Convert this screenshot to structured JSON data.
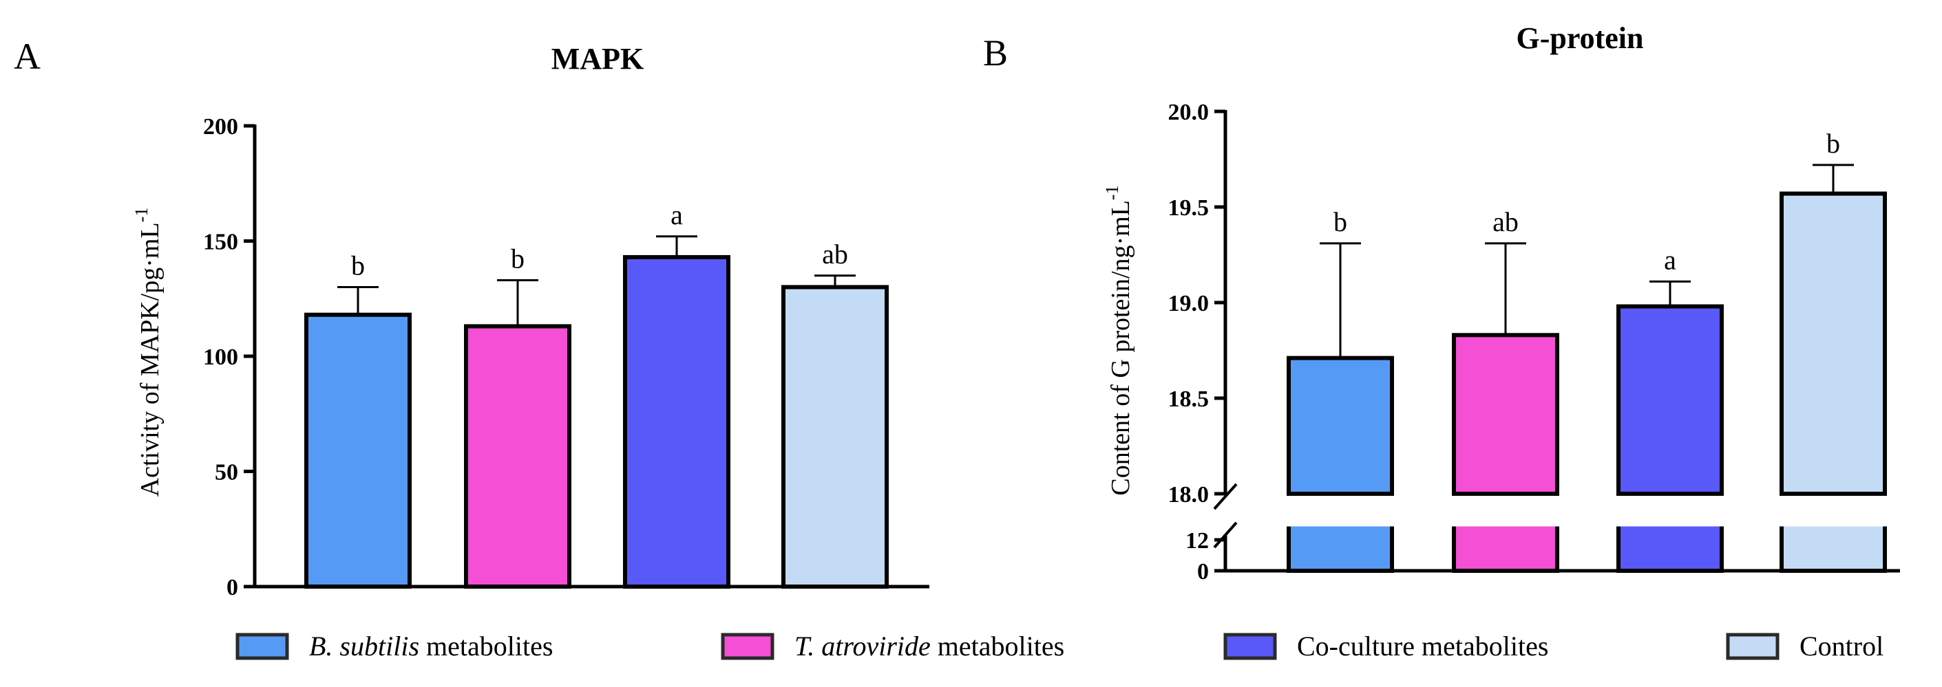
{
  "chart_data": [
    {
      "type": "bar",
      "panel_label": "A",
      "title": "MAPK",
      "ylabel_main": "Activity of MAPK/pg·mL",
      "ylabel_sup": "-1",
      "ylim": [
        0,
        200
      ],
      "yticks": [
        0,
        50,
        100,
        150,
        200
      ],
      "categories": [
        "B. subtilis metabolites",
        "T. atroviride metabolites",
        "Co-culture metabolites",
        "Control"
      ],
      "values": [
        118,
        113,
        143,
        130
      ],
      "errors": [
        12,
        20,
        9,
        5
      ],
      "significance": [
        "b",
        "b",
        "a",
        "ab"
      ],
      "colors": [
        "#559bf5",
        "#f44fd5",
        "#5959f9",
        "#c4dbf6"
      ]
    },
    {
      "type": "bar",
      "panel_label": "B",
      "title": "G-protein",
      "ylabel_main": "Content of G protein/ng·mL",
      "ylabel_sup": "-1",
      "broken_axis": true,
      "ylim_lower": [
        0,
        12
      ],
      "ylim_upper": [
        18.0,
        20.0
      ],
      "yticks_lower": [
        0,
        12
      ],
      "yticks_upper": [
        "18.0",
        "18.5",
        "19.0",
        "19.5",
        "20.0"
      ],
      "categories": [
        "B. subtilis metabolites",
        "T. atroviride metabolites",
        "Co-culture metabolites",
        "Control"
      ],
      "values": [
        18.71,
        18.83,
        18.98,
        19.57
      ],
      "errors": [
        0.6,
        0.48,
        0.13,
        0.15
      ],
      "significance": [
        "b",
        "ab",
        "a",
        "b"
      ],
      "colors": [
        "#559bf5",
        "#f44fd5",
        "#5959f9",
        "#c4dbf6"
      ]
    }
  ],
  "legend": {
    "placement": "bottom",
    "items": [
      {
        "italic": "B. subtilis",
        "rest": " metabolites",
        "color": "#559bf5"
      },
      {
        "italic": "T. atroviride",
        "rest": " metabolites",
        "color": "#f44fd5"
      },
      {
        "italic": "",
        "rest": "Co-culture metabolites",
        "color": "#5959f9"
      },
      {
        "italic": "",
        "rest": "Control",
        "color": "#c4dbf6"
      }
    ]
  }
}
